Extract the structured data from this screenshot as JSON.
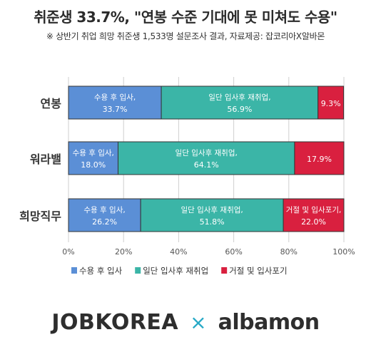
{
  "title": "취준생 33.7%, \"연봉 수준 기대에 못 미쳐도 수용\"",
  "subtitle": "※ 상반기 취업 희망 취준생 1,533명 설문조사 결과,  자료제공: 잡코리아X알바몬",
  "footer": {
    "brand_left": "JOBKOREA",
    "separator": "×",
    "brand_right": "albamon"
  },
  "chart_data": {
    "type": "bar",
    "orientation": "horizontal",
    "stacked": true,
    "categories": [
      "연봉",
      "워라밸",
      "희망직무"
    ],
    "series": [
      {
        "name": "수용 후 입사",
        "color": "#5b8fd6",
        "values": [
          33.7,
          18.0,
          26.2
        ],
        "labels": [
          "수용 후 입사,",
          "수용 후 입사,",
          "수용 후 입사,"
        ],
        "value_labels": [
          "33.7%",
          "18.0%",
          "26.2%"
        ]
      },
      {
        "name": "일단 입사후 재취업",
        "color": "#3bb5a7",
        "values": [
          56.9,
          64.1,
          51.8
        ],
        "labels": [
          "일단 입사후 재취업,",
          "일단 입사후 재취업,",
          "일단 입사후 재취업,"
        ],
        "value_labels": [
          "56.9%",
          "64.1%",
          "51.8%"
        ]
      },
      {
        "name": "거절 및 입사포기",
        "color": "#d9203f",
        "values": [
          9.3,
          17.9,
          22.0
        ],
        "labels": [
          "",
          "",
          "거절 및 입사포기,"
        ],
        "value_labels": [
          "9.3%",
          "17.9%",
          "22.0%"
        ]
      }
    ],
    "x_ticks": [
      "0%",
      "20%",
      "40%",
      "60%",
      "80%",
      "100%"
    ],
    "xlim": [
      0,
      100
    ],
    "grid": true,
    "legend": "bottom"
  }
}
